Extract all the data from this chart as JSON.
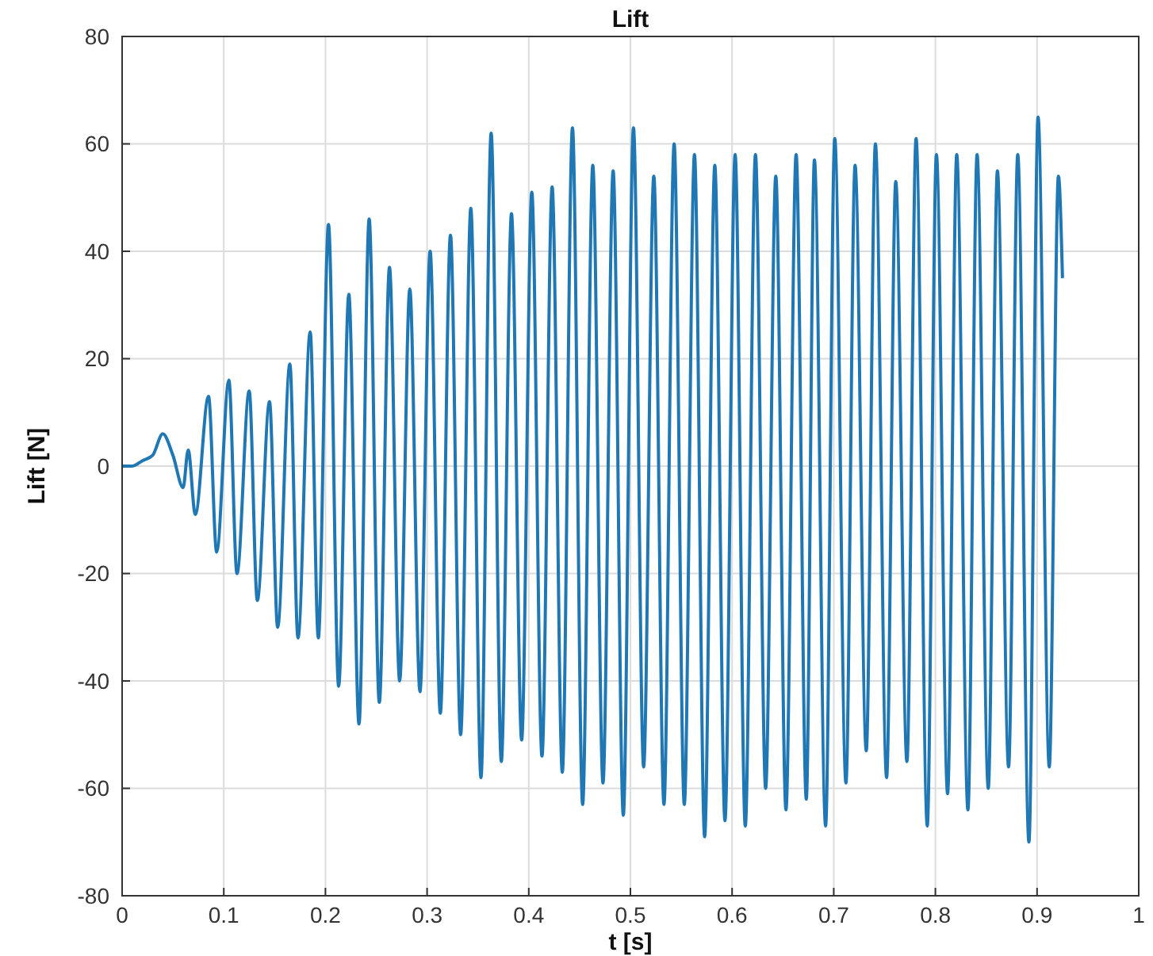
{
  "chart_data": {
    "type": "line",
    "title": "Lift",
    "xlabel": "t [s]",
    "ylabel": "Lift [N]",
    "xlim": [
      0,
      1
    ],
    "xticks": [
      0,
      0.1,
      0.2,
      0.3,
      0.4,
      0.5,
      0.6,
      0.7,
      0.8,
      0.9,
      1
    ],
    "ylim": [
      -80,
      80
    ],
    "yticks": [
      -80,
      -60,
      -40,
      -20,
      0,
      20,
      40,
      60,
      80
    ],
    "grid": true,
    "x": [
      0,
      0.01,
      0.02,
      0.03,
      0.04,
      0.05,
      0.06,
      0.065,
      0.072,
      0.085,
      0.093,
      0.105,
      0.113,
      0.125,
      0.133,
      0.145,
      0.153,
      0.165,
      0.173,
      0.185,
      0.193,
      0.203,
      0.213,
      0.223,
      0.233,
      0.243,
      0.253,
      0.263,
      0.273,
      0.283,
      0.293,
      0.303,
      0.313,
      0.323,
      0.333,
      0.343,
      0.353,
      0.363,
      0.373,
      0.383,
      0.393,
      0.403,
      0.413,
      0.423,
      0.433,
      0.443,
      0.453,
      0.463,
      0.473,
      0.483,
      0.493,
      0.503,
      0.513,
      0.523,
      0.533,
      0.543,
      0.553,
      0.563,
      0.573,
      0.583,
      0.593,
      0.603,
      0.613,
      0.623,
      0.633,
      0.643,
      0.653,
      0.663,
      0.673,
      0.681,
      0.692,
      0.701,
      0.712,
      0.721,
      0.732,
      0.741,
      0.752,
      0.761,
      0.772,
      0.781,
      0.792,
      0.801,
      0.812,
      0.821,
      0.832,
      0.841,
      0.852,
      0.861,
      0.872,
      0.881,
      0.892,
      0.901,
      0.912,
      0.921,
      0.925
    ],
    "series": [
      {
        "color": "#1f77b4",
        "values": [
          0,
          0,
          1,
          2,
          6,
          2,
          -4,
          3,
          -9,
          13,
          -16,
          16,
          -20,
          14,
          -25,
          12,
          -30,
          19,
          -32,
          25,
          -32,
          45,
          -41,
          32,
          -48,
          46,
          -44,
          37,
          -40,
          33,
          -42,
          40,
          -46,
          43,
          -50,
          48,
          -58,
          62,
          -55,
          47,
          -51,
          51,
          -54,
          52,
          -57,
          63,
          -63,
          56,
          -59,
          55,
          -65,
          63,
          -56,
          54,
          -63,
          60,
          -63,
          58,
          -69,
          56,
          -66,
          58,
          -67,
          58,
          -60,
          54,
          -64,
          58,
          -62,
          57,
          -67,
          61,
          -59,
          56,
          -53,
          60,
          -58,
          53,
          -55,
          61,
          -67,
          58,
          -61,
          58,
          -64,
          58,
          -60,
          55,
          -56,
          58,
          -70,
          65,
          -56,
          54,
          35
        ]
      }
    ]
  }
}
